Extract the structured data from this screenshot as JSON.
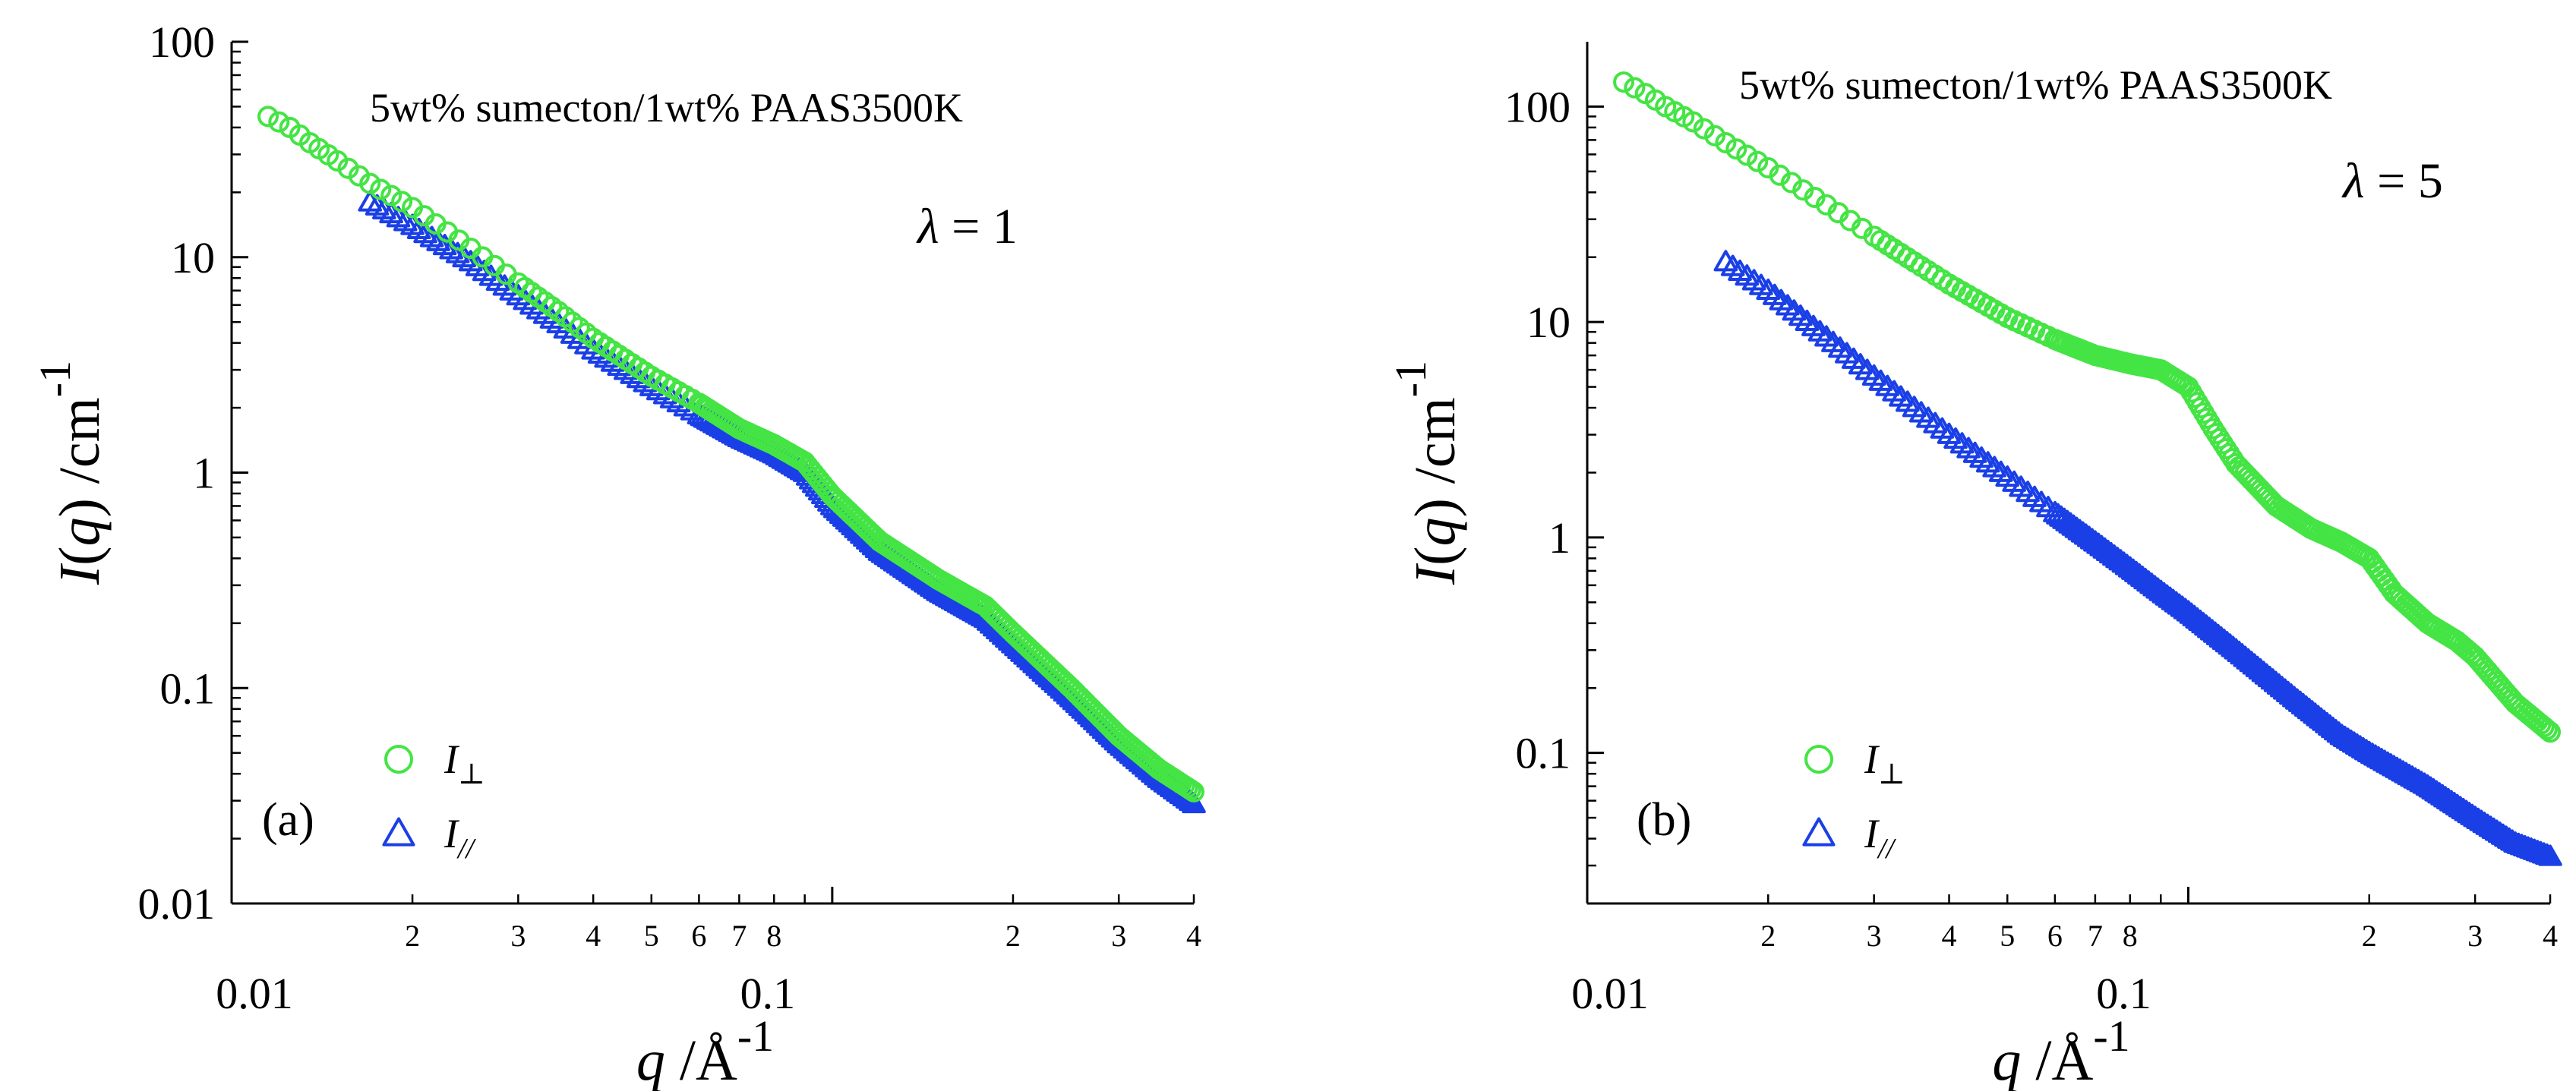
{
  "chart_data": [
    {
      "type": "scatter",
      "panel_label": "(a)",
      "annotation": "5wt% sumecton/1wt% PAAS3500K",
      "lambda_label": {
        "symbol": "λ",
        "text": " = 1"
      },
      "xlabel": {
        "var": "q",
        "unit": " /Å",
        "exp": "-1"
      },
      "ylabel": {
        "var": "I",
        "arg": "q",
        "unit": " /cm",
        "exp": "-1"
      },
      "xscale": "log",
      "yscale": "log",
      "xlim": [
        0.01,
        0.4
      ],
      "ylim": [
        0.01,
        100
      ],
      "x_major_ticks": [
        {
          "v": 0.01,
          "label": "0.01"
        },
        {
          "v": 0.1,
          "label": "0.1"
        }
      ],
      "x_minor_ticks": [
        {
          "v": 0.02,
          "label": "2"
        },
        {
          "v": 0.03,
          "label": "3"
        },
        {
          "v": 0.04,
          "label": "4"
        },
        {
          "v": 0.05,
          "label": "5"
        },
        {
          "v": 0.06,
          "label": "6"
        },
        {
          "v": 0.07,
          "label": "7"
        },
        {
          "v": 0.08,
          "label": "8"
        },
        {
          "v": 0.09,
          "label": ""
        },
        {
          "v": 0.2,
          "label": "2"
        },
        {
          "v": 0.3,
          "label": "3"
        },
        {
          "v": 0.4,
          "label": "4"
        }
      ],
      "y_major_ticks": [
        {
          "v": 0.01,
          "label": "0.01"
        },
        {
          "v": 0.1,
          "label": "0.1"
        },
        {
          "v": 1,
          "label": "1"
        },
        {
          "v": 10,
          "label": "10"
        },
        {
          "v": 100,
          "label": "100"
        }
      ],
      "grid": false,
      "legend_position": "bottom-left",
      "series": [
        {
          "name": "I⊥",
          "name_var": "I",
          "name_sub": "⊥",
          "marker": "circle",
          "color": "#44e444",
          "points": [
            [
              0.0115,
              45
            ],
            [
              0.0125,
              40
            ],
            [
              0.0135,
              34
            ],
            [
              0.015,
              28
            ],
            [
              0.017,
              22
            ],
            [
              0.02,
              17
            ],
            [
              0.025,
              11
            ],
            [
              0.03,
              7.6
            ],
            [
              0.035,
              5.6
            ],
            [
              0.04,
              4.2
            ],
            [
              0.05,
              2.8
            ],
            [
              0.06,
              2.1
            ],
            [
              0.07,
              1.6
            ],
            [
              0.08,
              1.35
            ],
            [
              0.09,
              1.12
            ],
            [
              0.1,
              0.78
            ],
            [
              0.12,
              0.48
            ],
            [
              0.15,
              0.32
            ],
            [
              0.18,
              0.24
            ],
            [
              0.2,
              0.18
            ],
            [
              0.25,
              0.1
            ],
            [
              0.3,
              0.06
            ],
            [
              0.35,
              0.042
            ],
            [
              0.4,
              0.033
            ]
          ]
        },
        {
          "name": "I//",
          "name_var": "I",
          "name_sub": "//",
          "marker": "triangle",
          "color": "#1a3fe6",
          "points": [
            [
              0.017,
              18
            ],
            [
              0.02,
              14
            ],
            [
              0.025,
              9.5
            ],
            [
              0.03,
              6.6
            ],
            [
              0.035,
              4.9
            ],
            [
              0.04,
              3.7
            ],
            [
              0.05,
              2.5
            ],
            [
              0.06,
              1.85
            ],
            [
              0.07,
              1.45
            ],
            [
              0.08,
              1.22
            ],
            [
              0.09,
              1.0
            ],
            [
              0.1,
              0.7
            ],
            [
              0.12,
              0.43
            ],
            [
              0.15,
              0.28
            ],
            [
              0.18,
              0.21
            ],
            [
              0.2,
              0.16
            ],
            [
              0.25,
              0.09
            ],
            [
              0.3,
              0.055
            ],
            [
              0.35,
              0.038
            ],
            [
              0.4,
              0.029
            ]
          ]
        }
      ]
    },
    {
      "type": "scatter",
      "panel_label": "(b)",
      "annotation": "5wt% sumecton/1wt% PAAS3500K",
      "lambda_label": {
        "symbol": "λ",
        "text": " = 5"
      },
      "xlabel": {
        "var": "q",
        "unit": " /Å",
        "exp": "-1"
      },
      "ylabel": {
        "var": "I",
        "arg": "q",
        "unit": " /cm",
        "exp": "-1"
      },
      "xscale": "log",
      "yscale": "log",
      "xlim": [
        0.01,
        0.4
      ],
      "ylim": [
        0.02,
        200
      ],
      "x_major_ticks": [
        {
          "v": 0.01,
          "label": "0.01"
        },
        {
          "v": 0.1,
          "label": "0.1"
        }
      ],
      "x_minor_ticks": [
        {
          "v": 0.02,
          "label": "2"
        },
        {
          "v": 0.03,
          "label": "3"
        },
        {
          "v": 0.04,
          "label": "4"
        },
        {
          "v": 0.05,
          "label": "5"
        },
        {
          "v": 0.06,
          "label": "6"
        },
        {
          "v": 0.07,
          "label": "7"
        },
        {
          "v": 0.08,
          "label": "8"
        },
        {
          "v": 0.09,
          "label": ""
        },
        {
          "v": 0.2,
          "label": "2"
        },
        {
          "v": 0.3,
          "label": "3"
        },
        {
          "v": 0.4,
          "label": "4"
        }
      ],
      "y_major_ticks": [
        {
          "v": 0.1,
          "label": "0.1"
        },
        {
          "v": 1,
          "label": "1"
        },
        {
          "v": 10,
          "label": "10"
        },
        {
          "v": 100,
          "label": "100"
        }
      ],
      "grid": false,
      "legend_position": "bottom-left",
      "series": [
        {
          "name": "I⊥",
          "name_var": "I",
          "name_sub": "⊥",
          "marker": "circle",
          "color": "#44e444",
          "points": [
            [
              0.0115,
              130
            ],
            [
              0.0125,
              115
            ],
            [
              0.0135,
              100
            ],
            [
              0.015,
              85
            ],
            [
              0.017,
              68
            ],
            [
              0.02,
              52
            ],
            [
              0.025,
              35
            ],
            [
              0.03,
              25
            ],
            [
              0.035,
              19
            ],
            [
              0.04,
              15
            ],
            [
              0.05,
              10.5
            ],
            [
              0.06,
              8.3
            ],
            [
              0.07,
              7.0
            ],
            [
              0.08,
              6.4
            ],
            [
              0.09,
              6.0
            ],
            [
              0.1,
              5.0
            ],
            [
              0.11,
              3.2
            ],
            [
              0.12,
              2.2
            ],
            [
              0.14,
              1.4
            ],
            [
              0.16,
              1.1
            ],
            [
              0.18,
              0.95
            ],
            [
              0.2,
              0.8
            ],
            [
              0.22,
              0.55
            ],
            [
              0.25,
              0.4
            ],
            [
              0.28,
              0.33
            ],
            [
              0.3,
              0.28
            ],
            [
              0.35,
              0.17
            ],
            [
              0.4,
              0.125
            ]
          ]
        },
        {
          "name": "I//",
          "name_var": "I",
          "name_sub": "//",
          "marker": "triangle",
          "color": "#1a3fe6",
          "points": [
            [
              0.017,
              19
            ],
            [
              0.02,
              14
            ],
            [
              0.025,
              8.5
            ],
            [
              0.03,
              5.6
            ],
            [
              0.035,
              4.0
            ],
            [
              0.04,
              3.0
            ],
            [
              0.05,
              1.9
            ],
            [
              0.06,
              1.3
            ],
            [
              0.07,
              0.95
            ],
            [
              0.08,
              0.72
            ],
            [
              0.09,
              0.56
            ],
            [
              0.1,
              0.45
            ],
            [
              0.12,
              0.3
            ],
            [
              0.15,
              0.18
            ],
            [
              0.18,
              0.12
            ],
            [
              0.2,
              0.1
            ],
            [
              0.25,
              0.07
            ],
            [
              0.3,
              0.05
            ],
            [
              0.35,
              0.038
            ],
            [
              0.4,
              0.033
            ]
          ]
        }
      ]
    }
  ]
}
